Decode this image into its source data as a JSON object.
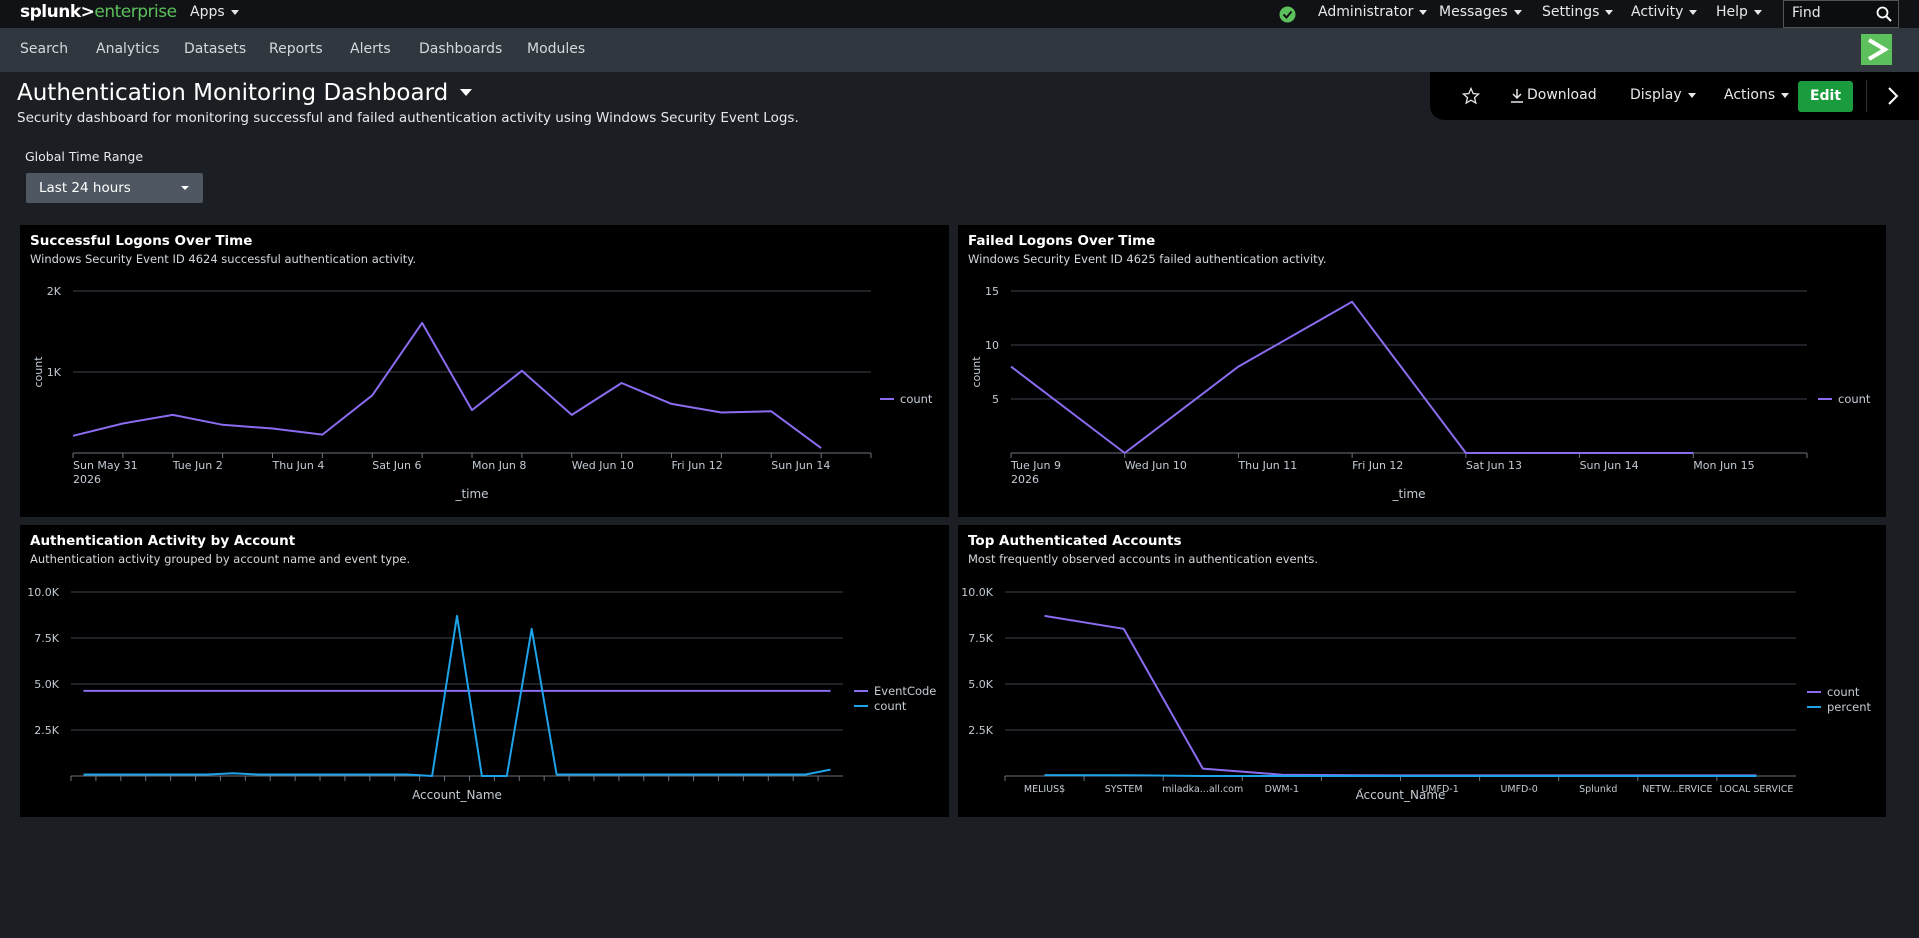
{
  "topbar": {
    "logo_main": "splunk>",
    "logo_product": "enterprise",
    "apps": "Apps",
    "menus": [
      "Administrator",
      "Messages",
      "Settings",
      "Activity",
      "Help"
    ],
    "find": "Find"
  },
  "appbar": {
    "items": [
      "Search",
      "Analytics",
      "Datasets",
      "Reports",
      "Alerts",
      "Dashboards",
      "Modules"
    ]
  },
  "dashboard": {
    "title": "Authentication Monitoring Dashboard",
    "description": "Security dashboard for monitoring successful and failed authentication activity using Windows Security Event Logs.",
    "actions": {
      "download": "Download",
      "display": "Display",
      "actions": "Actions",
      "edit": "Edit"
    },
    "input": {
      "label": "Global Time Range",
      "value": "Last 24 hours"
    }
  },
  "chart_data": [
    {
      "type": "line",
      "title": "Successful Logons Over Time",
      "subtitle": "Windows Security Event ID 4624 successful authentication activity.",
      "x_label": "_time",
      "y_label": "count",
      "x_sublabel": "2026",
      "categories": [
        "Sun May 31",
        null,
        "Tue Jun 2",
        null,
        "Thu Jun 4",
        null,
        "Sat Jun 6",
        null,
        "Mon Jun 8",
        null,
        "Wed Jun 10",
        null,
        "Fri Jun 12",
        null,
        "Sun Jun 14",
        null
      ],
      "series": [
        {
          "name": "count",
          "color": "#8b6cf0",
          "values": [
            212,
            364,
            470,
            348,
            303,
            227,
            712,
            1606,
            530,
            1015,
            470,
            864,
            606,
            500,
            515,
            61
          ]
        }
      ],
      "ylim": [
        0,
        2000
      ],
      "yticks": [
        {
          "value": 1000,
          "label": "1K"
        },
        {
          "value": 2000,
          "label": "2K"
        }
      ],
      "grid": true,
      "legend": "right"
    },
    {
      "type": "line",
      "title": "Failed Logons Over Time",
      "subtitle": "Windows Security Event ID 4625 failed authentication activity.",
      "x_label": "_time",
      "y_label": "count",
      "x_sublabel": "2026",
      "categories": [
        "Tue Jun 9",
        "Wed Jun 10",
        "Thu Jun 11",
        "Fri Jun 12",
        "Sat Jun 13",
        "Sun Jun 14",
        "Mon Jun 15"
      ],
      "series": [
        {
          "name": "count",
          "color": "#8b6cf0",
          "values": [
            8,
            0,
            8,
            14,
            0,
            0,
            0
          ]
        }
      ],
      "ylim": [
        0,
        15
      ],
      "yticks": [
        5,
        10,
        15
      ],
      "grid": true,
      "legend": "right"
    },
    {
      "type": "line",
      "title": "Authentication Activity by Account",
      "subtitle": "Authentication activity grouped by account name and event type.",
      "x_label": "Account_Name",
      "categories": [
        null,
        null,
        null,
        null,
        null,
        null,
        null,
        null,
        null,
        null,
        null,
        null,
        null,
        null,
        null,
        null,
        null,
        null,
        null,
        null,
        null,
        null,
        null,
        null,
        null,
        null,
        null,
        null,
        null,
        null,
        null
      ],
      "series": [
        {
          "name": "EventCode",
          "color": "#8b6cf0",
          "values": [
            4624,
            4624,
            4624,
            4624,
            4624,
            4624,
            4624,
            4624,
            4624,
            4624,
            4624,
            4624,
            4624,
            4624,
            4624,
            4624,
            4624,
            4624,
            4624,
            4624,
            4624,
            4624,
            4624,
            4624,
            4624,
            4624,
            4624,
            4624,
            4624,
            4624,
            4624
          ]
        },
        {
          "name": "count",
          "color": "#1ea2e8",
          "values": [
            80,
            80,
            80,
            80,
            80,
            80,
            150,
            80,
            80,
            80,
            80,
            80,
            80,
            80,
            0,
            8700,
            0,
            0,
            8000,
            80,
            80,
            80,
            80,
            80,
            80,
            80,
            80,
            80,
            80,
            80,
            350
          ]
        }
      ],
      "ylim": [
        0,
        10000
      ],
      "yticks": [
        {
          "value": 2500,
          "label": "2.5K"
        },
        {
          "value": 5000,
          "label": "5.0K"
        },
        {
          "value": 7500,
          "label": "7.5K"
        },
        {
          "value": 10000,
          "label": "10.0K"
        }
      ],
      "grid": true,
      "legend": "right"
    },
    {
      "type": "line",
      "title": "Top Authenticated Accounts",
      "subtitle": "Most frequently observed accounts in authentication events.",
      "x_label": "Account_Name",
      "categories": [
        "MELIUS$",
        "SYSTEM",
        "miladka...all.com",
        "DWM-1",
        "-",
        "UMFD-1",
        "UMFD-0",
        "Splunkd",
        "NETW...ERVICE",
        "LOCAL SERVICE"
      ],
      "series": [
        {
          "name": "count",
          "color": "#8b6cf0",
          "values": [
            8700,
            8000,
            400,
            70,
            40,
            30,
            30,
            30,
            30,
            30
          ]
        },
        {
          "name": "percent",
          "color": "#1ea2e8",
          "values": [
            49.8,
            45.8,
            2.3,
            0.4,
            0.2,
            0.2,
            0.2,
            0.2,
            0.2,
            0.2
          ]
        }
      ],
      "ylim": [
        0,
        10000
      ],
      "yticks": [
        {
          "value": 2500,
          "label": "2.5K"
        },
        {
          "value": 5000,
          "label": "5.0K"
        },
        {
          "value": 7500,
          "label": "7.5K"
        },
        {
          "value": 10000,
          "label": "10.0K"
        }
      ],
      "grid": true,
      "legend": "right"
    }
  ]
}
